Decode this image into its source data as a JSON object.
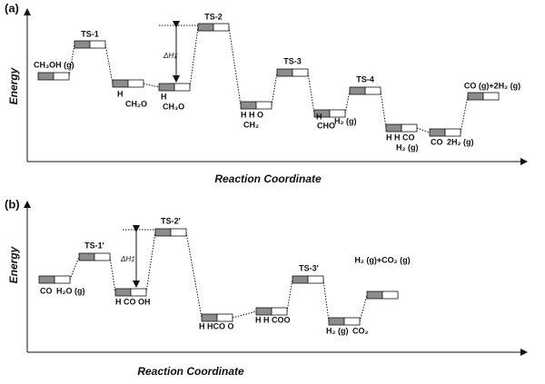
{
  "panels": [
    {
      "label": "(a)",
      "y_axis": "Energy",
      "x_axis": "Reaction Coordinate",
      "barrier_label": "ΔH‡",
      "states": [
        {
          "labels": [
            "CH₃OH (g)"
          ]
        },
        {
          "labels": [
            "TS-1"
          ]
        },
        {
          "labels": [
            "H",
            "CH₂O"
          ]
        },
        {
          "labels": [
            "H",
            "CH₃O"
          ]
        },
        {
          "labels": [
            "TS-2"
          ]
        },
        {
          "labels": [
            "H H O",
            "CH₂"
          ]
        },
        {
          "labels": [
            "TS-3"
          ]
        },
        {
          "labels": [
            "H",
            "CHO",
            "H₂ (g)"
          ]
        },
        {
          "labels": [
            "TS-4"
          ]
        },
        {
          "labels": [
            "H H CO",
            "H₂ (g)"
          ]
        },
        {
          "labels": [
            "CO",
            "2H₂ (g)"
          ]
        },
        {
          "labels": [
            "CO (g)+2H₂ (g)"
          ]
        }
      ]
    },
    {
      "label": "(b)",
      "y_axis": "Energy",
      "x_axis": "Reaction Coordinate",
      "barrier_label": "ΔH‡",
      "states": [
        {
          "labels": [
            "CO",
            "H₂O (g)"
          ]
        },
        {
          "labels": [
            "TS-1'"
          ]
        },
        {
          "labels": [
            "H CO OH"
          ]
        },
        {
          "labels": [
            "TS-2'"
          ]
        },
        {
          "labels": [
            "H HCO O"
          ]
        },
        {
          "labels": [
            "H H COO"
          ]
        },
        {
          "labels": [
            "TS-3'"
          ]
        },
        {
          "labels": [
            "H₂ (g)",
            "CO₂"
          ]
        },
        {
          "labels": [
            "H₂ (g)+CO₂ (g)"
          ]
        }
      ]
    }
  ]
}
